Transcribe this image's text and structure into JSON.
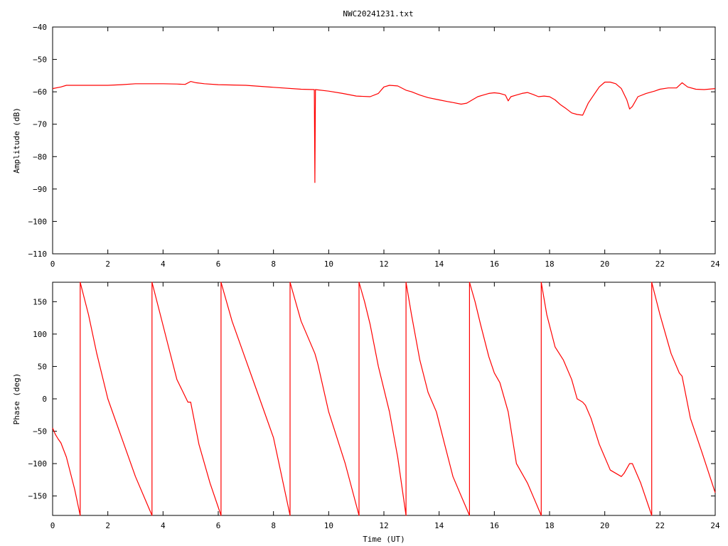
{
  "title": "NWC20241231.txt",
  "chart_data": [
    {
      "type": "line",
      "name": "amplitude-panel",
      "xlabel": "",
      "ylabel": "Amplitude (dB)",
      "xlim": [
        0,
        24
      ],
      "ylim": [
        -110,
        -40
      ],
      "xticks": [
        0,
        2,
        4,
        6,
        8,
        10,
        12,
        14,
        16,
        18,
        20,
        22,
        24
      ],
      "yticks": [
        -40,
        -50,
        -60,
        -70,
        -80,
        -90,
        -100,
        -110
      ],
      "grid": false,
      "line_color": "#ff0000",
      "series": [
        {
          "x": [
            0,
            0.3,
            0.5,
            1.0,
            1.5,
            2.0,
            2.5,
            3.0,
            3.5,
            4.0,
            4.5,
            4.8,
            5.0,
            5.2,
            5.5,
            6.0,
            7.0,
            8.0,
            9.0,
            9.48,
            9.5,
            9.52,
            10.0,
            10.5,
            11.0,
            11.5,
            11.8,
            12.0,
            12.2,
            12.5,
            12.8,
            13.0,
            13.3,
            13.6,
            14.0,
            14.3,
            14.5,
            14.8,
            15.0,
            15.2,
            15.4,
            15.6,
            15.8,
            16.0,
            16.2,
            16.4,
            16.5,
            16.6,
            16.8,
            17.0,
            17.2,
            17.4,
            17.6,
            17.8,
            18.0,
            18.2,
            18.4,
            18.6,
            18.8,
            19.0,
            19.2,
            19.4,
            19.6,
            19.8,
            20.0,
            20.2,
            20.4,
            20.6,
            20.8,
            20.9,
            21.0,
            21.2,
            21.5,
            21.8,
            22.0,
            22.3,
            22.6,
            22.8,
            23.0,
            23.3,
            23.6,
            24.0
          ],
          "y": [
            -59,
            -58.5,
            -58,
            -58,
            -58,
            -58,
            -57.8,
            -57.5,
            -57.5,
            -57.5,
            -57.6,
            -57.7,
            -56.8,
            -57.2,
            -57.5,
            -57.8,
            -58,
            -58.6,
            -59.2,
            -59.3,
            -88,
            -59.3,
            -59.8,
            -60.5,
            -61.3,
            -61.5,
            -60.5,
            -58.5,
            -58,
            -58.2,
            -59.5,
            -60,
            -61,
            -61.8,
            -62.5,
            -63,
            -63.3,
            -63.8,
            -63.5,
            -62.5,
            -61.5,
            -61,
            -60.5,
            -60.3,
            -60.5,
            -61,
            -62.8,
            -61.5,
            -61,
            -60.5,
            -60.2,
            -60.8,
            -61.5,
            -61.3,
            -61.5,
            -62.5,
            -64,
            -65.2,
            -66.5,
            -67,
            -67.2,
            -63.5,
            -61,
            -58.5,
            -57,
            -57,
            -57.5,
            -59,
            -62.5,
            -65.3,
            -64.5,
            -61.5,
            -60.5,
            -59.8,
            -59.2,
            -58.8,
            -58.8,
            -57.2,
            -58.5,
            -59.2,
            -59.3,
            -59
          ]
        }
      ]
    },
    {
      "type": "line",
      "name": "phase-panel",
      "xlabel": "Time (UT)",
      "ylabel": "Phase (deg)",
      "xlim": [
        0,
        24
      ],
      "ylim": [
        -180,
        180
      ],
      "xticks": [
        0,
        2,
        4,
        6,
        8,
        10,
        12,
        14,
        16,
        18,
        20,
        22,
        24
      ],
      "yticks": [
        150,
        100,
        50,
        0,
        -50,
        -100,
        -150
      ],
      "grid": false,
      "line_color": "#ff0000",
      "series": [
        {
          "x": [
            0,
            0.1,
            0.2,
            0.3,
            0.5,
            0.8,
            1.0,
            1.0,
            1.3,
            1.6,
            2.0,
            2.5,
            3.0,
            3.5,
            3.6,
            3.6,
            3.9,
            4.2,
            4.5,
            4.9,
            5.0,
            5.3,
            5.7,
            6.1,
            6.1,
            6.5,
            7.0,
            7.5,
            8.0,
            8.6,
            8.6,
            9.0,
            9.5,
            9.6,
            10.0,
            10.6,
            11.1,
            11.1,
            11.3,
            11.5,
            11.8,
            12.2,
            12.5,
            12.8,
            12.8,
            13.0,
            13.3,
            13.6,
            13.9,
            14.2,
            14.5,
            14.8,
            15.1,
            15.1,
            15.3,
            15.5,
            15.8,
            16.0,
            16.2,
            16.5,
            16.8,
            17.2,
            17.5,
            17.7,
            17.7,
            17.9,
            18.2,
            18.5,
            18.8,
            19.0,
            19.2,
            19.3,
            19.5,
            19.8,
            20.2,
            20.6,
            20.7,
            20.9,
            21.0,
            21.3,
            21.7,
            21.7,
            22.0,
            22.4,
            22.7,
            22.8,
            23.1,
            23.5,
            24.0
          ],
          "y": [
            -45,
            -55,
            -62,
            -68,
            -90,
            -140,
            -180,
            180,
            130,
            70,
            0,
            -60,
            -120,
            -170,
            -180,
            180,
            130,
            80,
            30,
            -5,
            -5,
            -70,
            -130,
            -180,
            180,
            120,
            60,
            0,
            -60,
            -180,
            180,
            120,
            70,
            55,
            -20,
            -100,
            -180,
            180,
            150,
            115,
            50,
            -20,
            -90,
            -180,
            180,
            130,
            60,
            10,
            -20,
            -70,
            -120,
            -150,
            -180,
            180,
            150,
            115,
            65,
            40,
            25,
            -20,
            -100,
            -130,
            -160,
            -180,
            180,
            130,
            80,
            60,
            30,
            0,
            -5,
            -10,
            -30,
            -70,
            -110,
            -120,
            -115,
            -100,
            -100,
            -130,
            -180,
            180,
            130,
            70,
            40,
            35,
            -30,
            -80,
            -145
          ]
        }
      ]
    }
  ]
}
